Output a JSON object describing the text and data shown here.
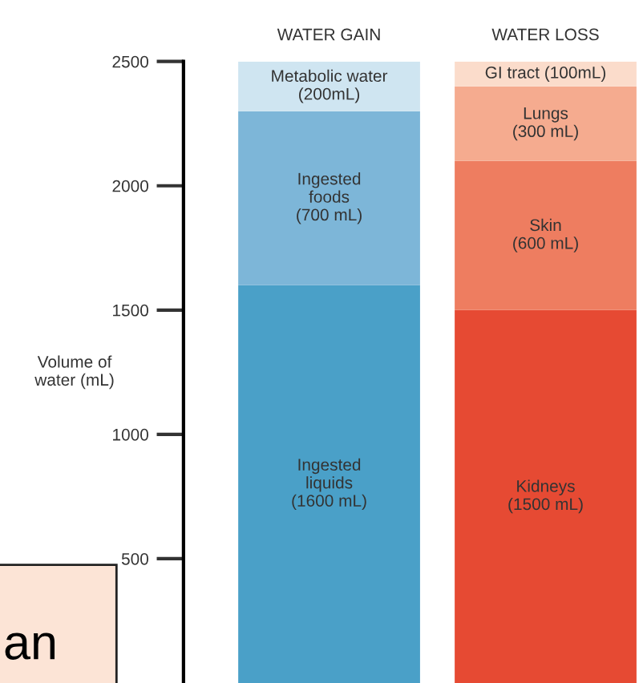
{
  "chart_data": {
    "type": "bar",
    "stacked": true,
    "categories": [
      "WATER GAIN",
      "WATER LOSS"
    ],
    "ylabel": "Volume of\nwater (mL)",
    "ylim": [
      0,
      2500
    ],
    "yticks": [
      500,
      1000,
      1500,
      2000,
      2500
    ],
    "grid": false,
    "legend": false,
    "series": [
      {
        "values": [
          1600,
          1500
        ],
        "colors": [
          "#4aa0c8",
          "#e64a33"
        ],
        "value_labels": [
          "Ingested\nliquids\n(1600 mL)",
          "Kidneys\n(1500 mL)"
        ]
      },
      {
        "values": [
          700,
          600
        ],
        "colors": [
          "#7db6d8",
          "#ee7d60"
        ],
        "value_labels": [
          "Ingested\nfoods\n(700 mL)",
          "Skin\n(600 mL)"
        ]
      },
      {
        "values": [
          200,
          300
        ],
        "colors": [
          "#cfe5f1",
          "#f5ab8f"
        ],
        "value_labels": [
          "Metabolic water\n(200mL)",
          "Lungs\n(300 mL)"
        ]
      },
      {
        "values": [
          null,
          100
        ],
        "colors": [
          "#fbdccb",
          "#fbdccb"
        ],
        "value_labels": [
          null,
          "GI tract (100mL)"
        ]
      }
    ],
    "annotations": [
      "an"
    ]
  }
}
